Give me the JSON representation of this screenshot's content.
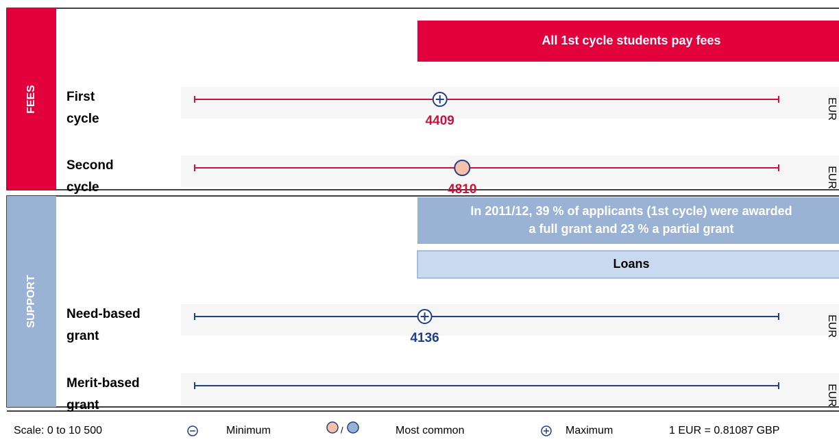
{
  "xlim": [
    0,
    10500
  ],
  "sections": [
    {
      "title": "FEES",
      "color": "#e2003d",
      "line_color": "#d0103a",
      "value_color": "#d0103a",
      "banners": [
        {
          "lines": [
            "All 1st cycle students pay fees"
          ],
          "fill": "#e2003d",
          "text_color": "#ffffff"
        }
      ],
      "rows": [
        {
          "label": [
            "First",
            "cycle"
          ],
          "value": 4409,
          "marker": "maximum",
          "unit": "EUR"
        },
        {
          "label": [
            "Second",
            "cycle"
          ],
          "value": 4810,
          "marker": "most_common",
          "unit": "EUR"
        }
      ]
    },
    {
      "title": "SUPPORT",
      "color": "#9ab3d5",
      "line_color": "#1f3f8a",
      "value_color": "#1f3f8a",
      "banners": [
        {
          "lines": [
            "In 2011/12, 39 % of applicants (1st cycle) were awarded",
            "a full grant and 23 % a partial grant"
          ],
          "fill": "#9ab3d5",
          "text_color": "#ffffff"
        },
        {
          "lines": [
            "Loans"
          ],
          "fill": "#c9daf0",
          "text_color": "#000000"
        }
      ],
      "rows": [
        {
          "label": [
            "Need-based",
            "grant"
          ],
          "value": 4136,
          "marker": "maximum",
          "unit": "EUR"
        },
        {
          "label": [
            "Merit-based",
            "grant"
          ],
          "value": null,
          "marker": null,
          "unit": "EUR"
        }
      ]
    }
  ],
  "legend": {
    "scale": "Scale: 0 to 10 500",
    "minimum": "Minimum",
    "separator": "/",
    "most_common": "Most common",
    "maximum": "Maximum",
    "conversion": "1 EUR = 0.81087 GBP"
  }
}
